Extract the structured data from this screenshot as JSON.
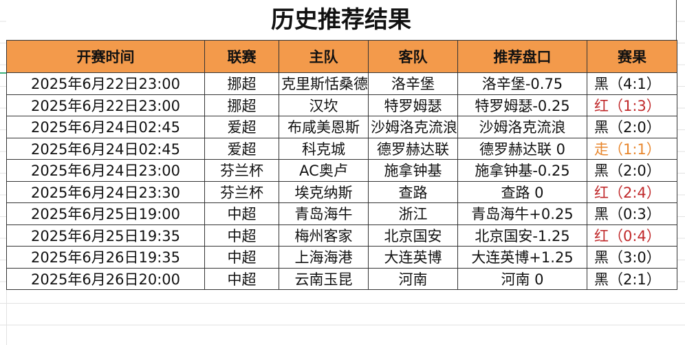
{
  "title": "历史推荐结果",
  "headers": [
    "开赛时间",
    "联赛",
    "主队",
    "客队",
    "推荐盘口",
    "赛果"
  ],
  "colors": {
    "header_bg": "#f39a4b",
    "black": "#111111",
    "red": "#c0282a",
    "draw": "#e8862c"
  },
  "rows": [
    {
      "time": "2025年6月22日23:00",
      "league": "挪超",
      "home": "克里斯恬桑德",
      "away": "洛辛堡",
      "pick": "洛辛堡-0.75",
      "result": "黑（4:1）",
      "status": "black"
    },
    {
      "time": "2025年6月22日23:00",
      "league": "挪超",
      "home": "汉坎",
      "away": "特罗姆瑟",
      "pick": "特罗姆瑟-0.25",
      "result": "红（1:3）",
      "status": "red"
    },
    {
      "time": "2025年6月24日02:45",
      "league": "爱超",
      "home": "布咸美恩斯",
      "away": "沙姆洛克流浪",
      "pick": "沙姆洛克流浪",
      "result": "黑（2:0）",
      "status": "black"
    },
    {
      "time": "2025年6月24日02:45",
      "league": "爱超",
      "home": "科克城",
      "away": "德罗赫达联",
      "pick": "德罗赫达联 0",
      "result": "走（1:1）",
      "status": "draw"
    },
    {
      "time": "2025年6月24日23:00",
      "league": "芬兰杯",
      "home": "AC奥卢",
      "away": "施拿钟基",
      "pick": "施拿钟基-0.25",
      "result": "黑（2:0）",
      "status": "black"
    },
    {
      "time": "2025年6月24日23:30",
      "league": "芬兰杯",
      "home": "埃克纳斯",
      "away": "查路",
      "pick": "查路 0",
      "result": "红（2:4）",
      "status": "red"
    },
    {
      "time": "2025年6月25日19:00",
      "league": "中超",
      "home": "青岛海牛",
      "away": "浙江",
      "pick": "青岛海牛+0.25",
      "result": "黑（0:3）",
      "status": "black"
    },
    {
      "time": "2025年6月25日19:35",
      "league": "中超",
      "home": "梅州客家",
      "away": "北京国安",
      "pick": "北京国安-1.25",
      "result": "红（0:4）",
      "status": "red"
    },
    {
      "time": "2025年6月26日19:35",
      "league": "中超",
      "home": "上海海港",
      "away": "大连英博",
      "pick": "大连英博+1.25",
      "result": "黑（3:0）",
      "status": "black"
    },
    {
      "time": "2025年6月26日20:00",
      "league": "中超",
      "home": "云南玉昆",
      "away": "河南",
      "pick": "河南 0",
      "result": "黑（2:1）",
      "status": "black"
    }
  ]
}
